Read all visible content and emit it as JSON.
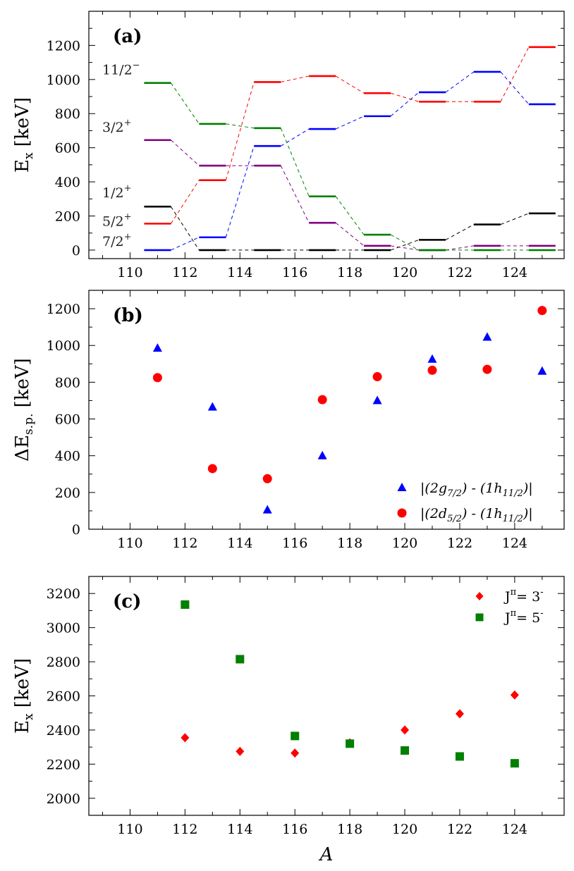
{
  "chart_data": [
    {
      "panel": "(a)",
      "type": "line",
      "ylabel": "E",
      "ylabel_sub": "x",
      "ylabel_unit": "[keV]",
      "xlim": [
        108.5,
        125.8
      ],
      "ylim": [
        -50,
        1400
      ],
      "xticks": [
        110,
        112,
        114,
        116,
        118,
        120,
        122,
        124
      ],
      "yticks": [
        0,
        200,
        400,
        600,
        800,
        1000,
        1200
      ],
      "x": [
        111,
        113,
        115,
        117,
        119,
        121,
        123,
        125
      ],
      "series": [
        {
          "color": "#000000",
          "values": [
            255,
            0,
            0,
            0,
            0,
            60,
            150,
            215
          ]
        },
        {
          "color": "#ff0000",
          "values": [
            155,
            410,
            985,
            1020,
            920,
            870,
            870,
            1190
          ]
        },
        {
          "color": "#800080",
          "values": [
            645,
            495,
            495,
            160,
            25,
            0,
            25,
            25
          ]
        },
        {
          "color": "#0000ff",
          "values": [
            0,
            75,
            610,
            710,
            785,
            925,
            1045,
            855
          ]
        },
        {
          "color": "#008000",
          "values": [
            980,
            740,
            715,
            315,
            90,
            0,
            0,
            0
          ]
        }
      ],
      "level_labels": [
        {
          "text": "11/2",
          "sup": "−",
          "y": 980
        },
        {
          "text": "3/2",
          "sup": "+",
          "y": 645
        },
        {
          "text": "1/2",
          "sup": "+",
          "y": 255
        },
        {
          "text": "5/2",
          "sup": "+",
          "y": 155
        },
        {
          "text": "7/2",
          "sup": "+",
          "y": 0
        }
      ]
    },
    {
      "panel": "(b)",
      "type": "scatter",
      "ylabel": "ΔE",
      "ylabel_sub": "s.p.",
      "ylabel_unit": "[keV]",
      "xlim": [
        108.5,
        125.8
      ],
      "ylim": [
        0,
        1300
      ],
      "xticks": [
        110,
        112,
        114,
        116,
        118,
        120,
        122,
        124
      ],
      "yticks": [
        0,
        200,
        400,
        600,
        800,
        1000,
        1200
      ],
      "series": [
        {
          "legend_pre": "|(2g",
          "legend_sub1": "7/2",
          "legend_mid": ") - (1h",
          "legend_sub2": "11/2",
          "legend_post": ")|",
          "color": "#0000ff",
          "marker": "triangle",
          "x": [
            111,
            113,
            115,
            117,
            119,
            121,
            123,
            125
          ],
          "y": [
            985,
            665,
            105,
            400,
            700,
            925,
            1045,
            860
          ]
        },
        {
          "legend_pre": "|(2d",
          "legend_sub1": "5/2",
          "legend_mid": ") - (1h",
          "legend_sub2": "11/2",
          "legend_post": ")|",
          "color": "#ff0000",
          "marker": "circle",
          "x": [
            111,
            113,
            115,
            117,
            119,
            121,
            123,
            125
          ],
          "y": [
            825,
            330,
            275,
            705,
            830,
            865,
            870,
            1190
          ]
        }
      ],
      "legend": "bottom-right"
    },
    {
      "panel": "(c)",
      "type": "scatter",
      "ylabel": "E",
      "ylabel_sub": "x",
      "ylabel_unit": "[keV]",
      "xlabel": "A",
      "xlim": [
        108.5,
        125.8
      ],
      "ylim": [
        1900,
        3300
      ],
      "xticks": [
        110,
        112,
        114,
        116,
        118,
        120,
        122,
        124
      ],
      "yticks": [
        2000,
        2200,
        2400,
        2600,
        2800,
        3000,
        3200
      ],
      "series": [
        {
          "legend_pre": "J",
          "legend_sup": "π",
          "legend_mid": "= 3",
          "legend_sup2": "-",
          "color": "#ff0000",
          "marker": "diamond",
          "x": [
            112,
            114,
            116,
            118,
            120,
            122,
            124
          ],
          "y": [
            2355,
            2275,
            2265,
            2325,
            2400,
            2495,
            2605
          ]
        },
        {
          "legend_pre": "J",
          "legend_sup": "π",
          "legend_mid": "= 5",
          "legend_sup2": "-",
          "color": "#008000",
          "marker": "square",
          "x": [
            112,
            114,
            116,
            118,
            120,
            122,
            124
          ],
          "y": [
            3135,
            2815,
            2365,
            2320,
            2280,
            2245,
            2205
          ]
        }
      ],
      "legend": "top-right"
    }
  ]
}
